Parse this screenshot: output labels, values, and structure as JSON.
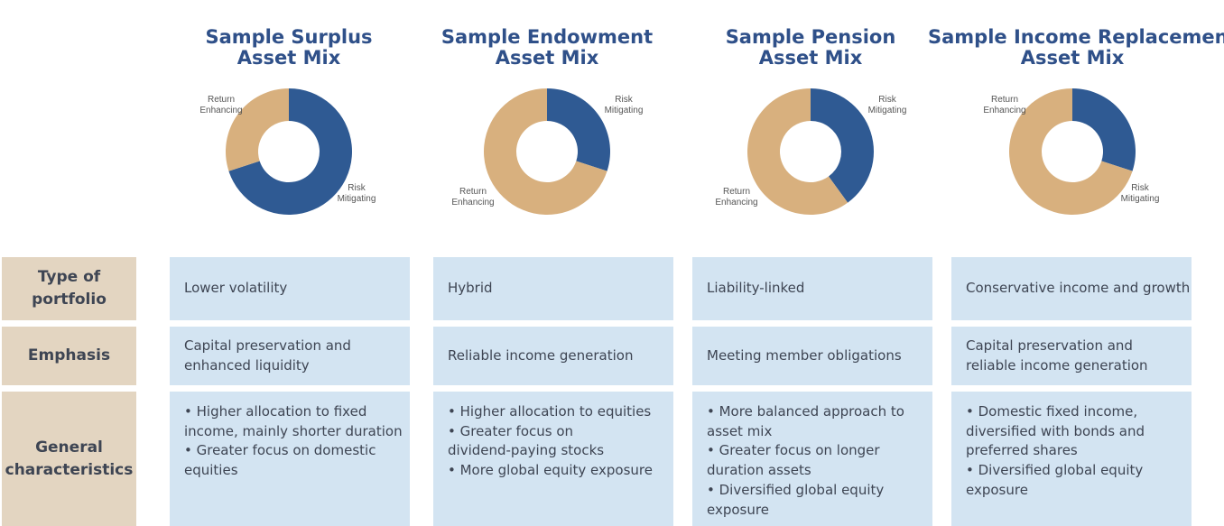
{
  "colors": {
    "risk_mitigating": "#2f5a93",
    "return_enhancing": "#d8b07e",
    "title": "#2f5089",
    "row_header_bg": "#e3d5c1",
    "cell_bg": "#d3e4f2"
  },
  "chart_data": [
    {
      "type": "pie",
      "title": [
        "Sample Surplus",
        "Asset Mix"
      ],
      "categories": [
        "Risk Mitigating",
        "Return Enhancing"
      ],
      "label_lines": [
        [
          "Risk",
          "Mitigating"
        ],
        [
          "Return",
          "Enhancing"
        ]
      ],
      "values": [
        70,
        30
      ],
      "label_placement": [
        "bottom-right",
        "top-left"
      ]
    },
    {
      "type": "pie",
      "title": [
        "Sample Endowment",
        "Asset Mix"
      ],
      "categories": [
        "Risk Mitigating",
        "Return Enhancing"
      ],
      "label_lines": [
        [
          "Risk",
          "Mitigating"
        ],
        [
          "Return",
          "Enhancing"
        ]
      ],
      "values": [
        30,
        70
      ],
      "label_placement": [
        "top-right",
        "bottom-left"
      ]
    },
    {
      "type": "pie",
      "title": [
        "Sample Pension",
        "Asset Mix"
      ],
      "categories": [
        "Risk Mitigating",
        "Return Enhancing"
      ],
      "label_lines": [
        [
          "Risk",
          "Mitigating"
        ],
        [
          "Return",
          "Enhancing"
        ]
      ],
      "values": [
        40,
        60
      ],
      "label_placement": [
        "top-right",
        "bottom-left"
      ]
    },
    {
      "type": "pie",
      "title": [
        "Sample Income Replacement",
        "Asset Mix"
      ],
      "categories": [
        "Risk Mitigating",
        "Return Enhancing"
      ],
      "label_lines": [
        [
          "Risk",
          "Mitigating"
        ],
        [
          "Return",
          "Enhancing"
        ]
      ],
      "values": [
        30,
        70
      ],
      "label_placement": [
        "bottom-right",
        "top-left"
      ]
    }
  ],
  "table": {
    "rows": [
      {
        "header": [
          "Type of",
          "portfolio"
        ],
        "cells": [
          [
            [
              "Lower volatility"
            ]
          ],
          [
            [
              "Hybrid"
            ]
          ],
          [
            [
              "Liability-linked"
            ]
          ],
          [
            [
              "Conservative income and growth"
            ]
          ]
        ]
      },
      {
        "header": [
          "Emphasis"
        ],
        "cells": [
          [
            [
              "Capital preservation and",
              "enhanced liquidity"
            ]
          ],
          [
            [
              "Reliable income generation"
            ]
          ],
          [
            [
              "Meeting member obligations"
            ]
          ],
          [
            [
              "Capital preservation and",
              "reliable income generation"
            ]
          ]
        ]
      },
      {
        "header": [
          "General",
          "characteristics"
        ],
        "cells": [
          [
            [
              "• Higher allocation to fixed",
              "income, mainly shorter duration"
            ],
            [
              "• Greater focus on domestic",
              "equities"
            ]
          ],
          [
            [
              "• Higher allocation to equities"
            ],
            [
              "• Greater focus on",
              "dividend-paying stocks"
            ],
            [
              "• More global equity exposure"
            ]
          ],
          [
            [
              "• More balanced approach to",
              "asset mix"
            ],
            [
              "• Greater focus on longer",
              "duration assets"
            ],
            [
              "• Diversified global equity",
              "exposure"
            ]
          ],
          [
            [
              "• Domestic fixed income,",
              "diversified with bonds and",
              "preferred shares"
            ],
            [
              "• Diversified global equity",
              "exposure"
            ]
          ]
        ]
      }
    ]
  }
}
